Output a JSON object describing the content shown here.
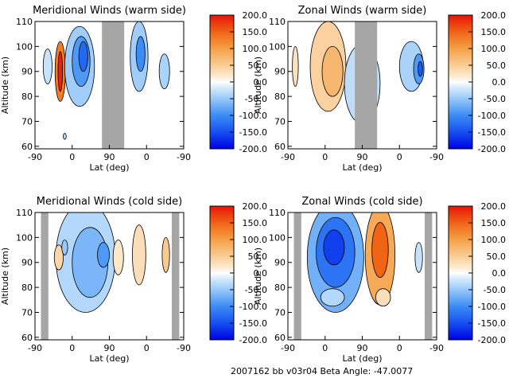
{
  "footer": "2007162 bb v03r04   Beta Angle: -47.0077",
  "chart_data": [
    {
      "type": "heatmap",
      "title": "Meridional Winds (warm side)",
      "xlabel": "Lat (deg)",
      "ylabel": "Altitude (km)",
      "x_ticks": [
        "-90",
        "0",
        "90",
        "0",
        "-90"
      ],
      "y_ticks": [
        "60",
        "70",
        "80",
        "90",
        "100",
        "110"
      ],
      "ylim": [
        59,
        110
      ],
      "colorbar_ticks": [
        "200.0",
        "150.0",
        "100.0",
        "50.0",
        "0.0",
        "-50.0",
        "-100.0",
        "-150.0",
        "-200.0"
      ],
      "clim": [
        -200,
        200
      ],
      "gaps": [
        [
          0.45,
          0.6
        ]
      ],
      "regions": [
        {
          "cx": 0.17,
          "cy": 90,
          "rx": 0.035,
          "ry": 12,
          "v": 130
        },
        {
          "cx": 0.17,
          "cy": 90,
          "rx": 0.015,
          "ry": 8,
          "v": 190
        },
        {
          "cx": 0.085,
          "cy": 92,
          "rx": 0.03,
          "ry": 7,
          "v": -25
        },
        {
          "cx": 0.3,
          "cy": 92,
          "rx": 0.1,
          "ry": 16,
          "v": -45
        },
        {
          "cx": 0.31,
          "cy": 94,
          "rx": 0.06,
          "ry": 10,
          "v": -90
        },
        {
          "cx": 0.325,
          "cy": 96,
          "rx": 0.03,
          "ry": 6,
          "v": -130
        },
        {
          "cx": 0.7,
          "cy": 96,
          "rx": 0.06,
          "ry": 14,
          "v": -45
        },
        {
          "cx": 0.71,
          "cy": 97,
          "rx": 0.03,
          "ry": 7,
          "v": -100
        },
        {
          "cx": 0.87,
          "cy": 90,
          "rx": 0.035,
          "ry": 7,
          "v": -40
        },
        {
          "cx": 0.2,
          "cy": 64,
          "rx": 0.01,
          "ry": 1.2,
          "v": -30
        }
      ]
    },
    {
      "type": "heatmap",
      "title": "Zonal Winds (warm side)",
      "xlabel": "Lat (deg)",
      "ylabel": "Altitude (km)",
      "x_ticks": [
        "-90",
        "0",
        "90",
        "0",
        "-90"
      ],
      "y_ticks": [
        "60",
        "70",
        "80",
        "90",
        "100",
        "110"
      ],
      "ylim": [
        59,
        110
      ],
      "colorbar_ticks": [
        "200.0",
        "150.0",
        "100.0",
        "50.0",
        "0.0",
        "-50.0",
        "-100.0",
        "-150.0",
        "-200.0"
      ],
      "clim": [
        -200,
        200
      ],
      "gaps": [
        [
          0.45,
          0.6
        ]
      ],
      "regions": [
        {
          "cx": 0.27,
          "cy": 92,
          "rx": 0.12,
          "ry": 18,
          "v": 45
        },
        {
          "cx": 0.3,
          "cy": 90,
          "rx": 0.07,
          "ry": 10,
          "v": 75
        },
        {
          "cx": 0.05,
          "cy": 92,
          "rx": 0.02,
          "ry": 8,
          "v": 25
        },
        {
          "cx": 0.5,
          "cy": 85,
          "rx": 0.12,
          "ry": 16,
          "v": -30
        },
        {
          "cx": 0.83,
          "cy": 92,
          "rx": 0.08,
          "ry": 10,
          "v": -40
        },
        {
          "cx": 0.88,
          "cy": 91,
          "rx": 0.035,
          "ry": 6,
          "v": -90
        },
        {
          "cx": 0.89,
          "cy": 91,
          "rx": 0.015,
          "ry": 3,
          "v": -140
        }
      ]
    },
    {
      "type": "heatmap",
      "title": "Meridional Winds (cold side)",
      "xlabel": "Lat (deg)",
      "ylabel": "Altitude (km)",
      "x_ticks": [
        "-90",
        "0",
        "90",
        "0",
        "-90"
      ],
      "y_ticks": [
        "60",
        "70",
        "80",
        "90",
        "100",
        "110"
      ],
      "ylim": [
        59,
        110
      ],
      "colorbar_ticks": [
        "200.0",
        "150.0",
        "100.0",
        "50.0",
        "0.0",
        "-50.0",
        "-100.0",
        "-150.0",
        "-200.0"
      ],
      "clim": [
        -200,
        200
      ],
      "gaps": [
        [
          0.04,
          0.09
        ],
        [
          0.92,
          0.97
        ]
      ],
      "regions": [
        {
          "cx": 0.34,
          "cy": 92,
          "rx": 0.2,
          "ry": 22,
          "v": -35
        },
        {
          "cx": 0.37,
          "cy": 90,
          "rx": 0.12,
          "ry": 14,
          "v": -65
        },
        {
          "cx": 0.46,
          "cy": 93,
          "rx": 0.04,
          "ry": 5,
          "v": -90
        },
        {
          "cx": 0.56,
          "cy": 92,
          "rx": 0.035,
          "ry": 7,
          "v": 20
        },
        {
          "cx": 0.7,
          "cy": 93,
          "rx": 0.045,
          "ry": 12,
          "v": 30
        },
        {
          "cx": 0.88,
          "cy": 93,
          "rx": 0.025,
          "ry": 7,
          "v": 55
        },
        {
          "cx": 0.16,
          "cy": 92,
          "rx": 0.03,
          "ry": 5,
          "v": 40
        },
        {
          "cx": 0.2,
          "cy": 96,
          "rx": 0.02,
          "ry": 3,
          "v": -50
        }
      ]
    },
    {
      "type": "heatmap",
      "title": "Zonal Winds (cold side)",
      "xlabel": "Lat (deg)",
      "ylabel": "Altitude (km)",
      "x_ticks": [
        "-90",
        "0",
        "90",
        "0",
        "-90"
      ],
      "y_ticks": [
        "60",
        "70",
        "80",
        "90",
        "100",
        "110"
      ],
      "ylim": [
        59,
        110
      ],
      "colorbar_ticks": [
        "200.0",
        "150.0",
        "100.0",
        "50.0",
        "0.0",
        "-50.0",
        "-100.0",
        "-150.0",
        "-200.0"
      ],
      "clim": [
        -200,
        200
      ],
      "gaps": [
        [
          0.04,
          0.09
        ],
        [
          0.92,
          0.97
        ]
      ],
      "regions": [
        {
          "cx": 0.32,
          "cy": 92,
          "rx": 0.19,
          "ry": 22,
          "v": -70
        },
        {
          "cx": 0.32,
          "cy": 94,
          "rx": 0.13,
          "ry": 14,
          "v": -120
        },
        {
          "cx": 0.31,
          "cy": 96,
          "rx": 0.07,
          "ry": 7,
          "v": -160
        },
        {
          "cx": 0.62,
          "cy": 93,
          "rx": 0.1,
          "ry": 20,
          "v": 90
        },
        {
          "cx": 0.62,
          "cy": 95,
          "rx": 0.055,
          "ry": 11,
          "v": 150
        },
        {
          "cx": 0.3,
          "cy": 76,
          "rx": 0.08,
          "ry": 3.5,
          "v": -35
        },
        {
          "cx": 0.64,
          "cy": 76,
          "rx": 0.05,
          "ry": 3.5,
          "v": 30
        },
        {
          "cx": 0.88,
          "cy": 92,
          "rx": 0.025,
          "ry": 6,
          "v": -25
        }
      ]
    }
  ]
}
